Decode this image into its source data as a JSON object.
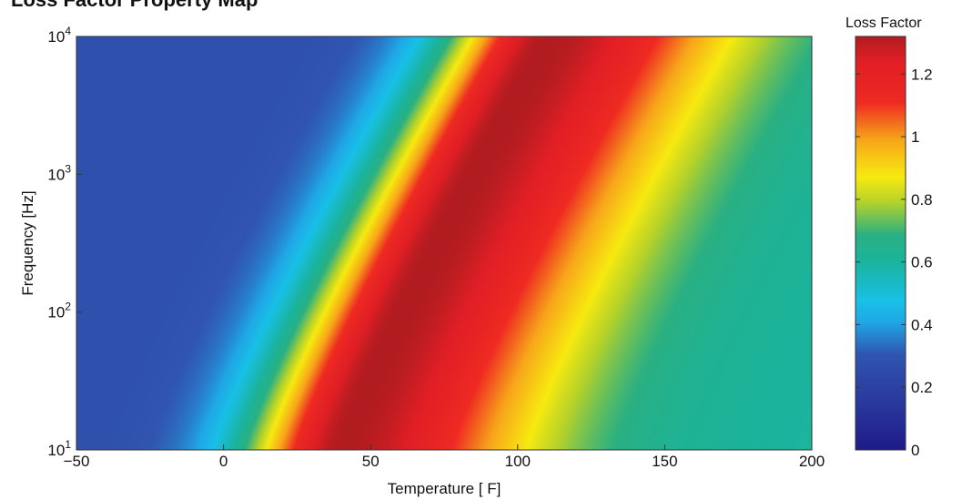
{
  "chart_data": {
    "type": "heatmap",
    "title": "Loss Factor Property Map",
    "xlabel": "Temperature [ F]",
    "ylabel": "Frequency [Hz]",
    "xlim": [
      -50,
      200
    ],
    "ylim": [
      10,
      10000
    ],
    "y_scale": "log",
    "x_ticks": [
      "−50",
      "0",
      "50",
      "100",
      "150",
      "200"
    ],
    "x_tick_values": [
      -50,
      0,
      50,
      100,
      150,
      200
    ],
    "y_tick_values": [
      10,
      100,
      1000,
      10000
    ],
    "y_ticks": [
      {
        "base": "10",
        "exp": "1"
      },
      {
        "base": "10",
        "exp": "2"
      },
      {
        "base": "10",
        "exp": "3"
      },
      {
        "base": "10",
        "exp": "4"
      }
    ],
    "colorbar": {
      "label": "Loss Factor",
      "range": [
        0,
        1.32
      ],
      "ticks": [
        "0",
        "0.2",
        "0.4",
        "0.6",
        "0.8",
        "1",
        "1.2"
      ],
      "tick_values": [
        0,
        0.2,
        0.4,
        0.6,
        0.8,
        1.0,
        1.2
      ],
      "colormap": "jet"
    },
    "peak_ridge": {
      "description_free": true,
      "temperature_at_10Hz": 40,
      "temperature_at_10000Hz": 110,
      "peak_value": 1.32
    },
    "low_temp_plateau": 0.28,
    "high_temp_plateau": 0.6,
    "grid": false
  }
}
